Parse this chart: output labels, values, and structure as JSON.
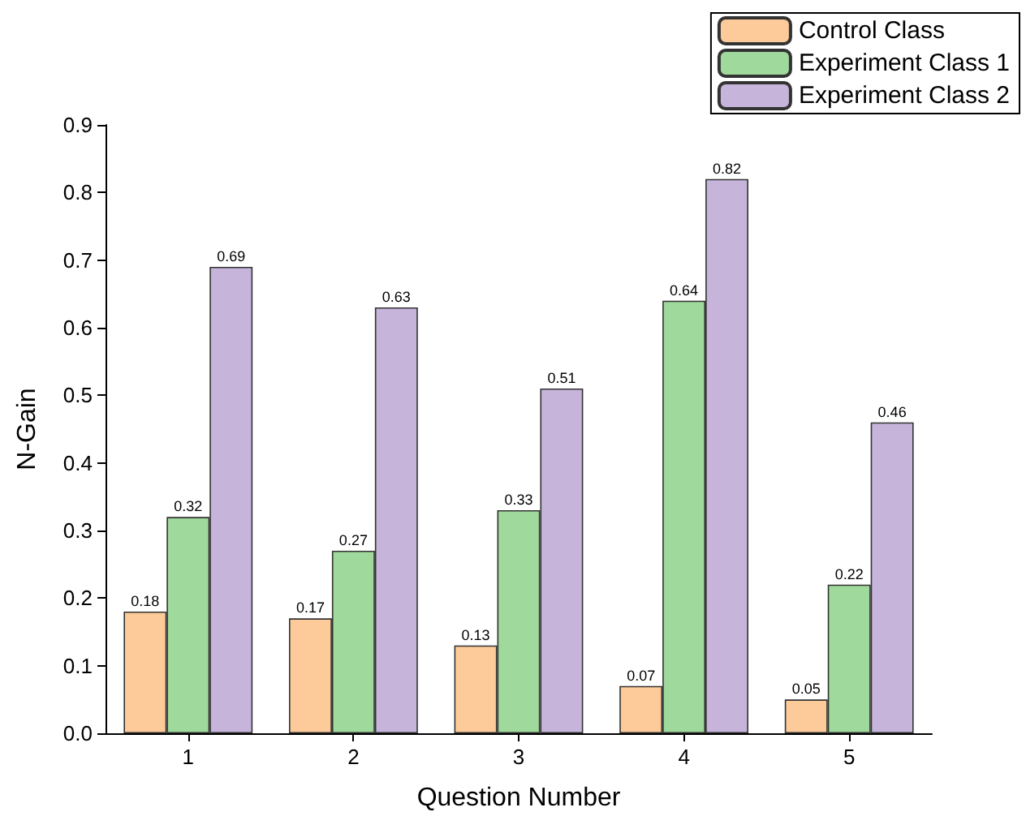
{
  "chart_data": {
    "type": "bar",
    "xlabel": "Question Number",
    "ylabel": "N-Gain",
    "categories": [
      "1",
      "2",
      "3",
      "4",
      "5"
    ],
    "series": [
      {
        "name": "Control Class",
        "color": "#fdca99",
        "values": [
          0.18,
          0.17,
          0.13,
          0.07,
          0.05
        ]
      },
      {
        "name": "Experiment Class 1",
        "color": "#9fd99b",
        "values": [
          0.32,
          0.27,
          0.33,
          0.64,
          0.22
        ]
      },
      {
        "name": "Experiment Class 2",
        "color": "#c6b4da",
        "values": [
          0.69,
          0.63,
          0.51,
          0.82,
          0.46
        ]
      }
    ],
    "ylim": [
      0,
      0.9
    ],
    "yticks": [
      {
        "value": 0,
        "label": "0.0"
      },
      0.1,
      0.2,
      0.3,
      0.4,
      0.5,
      0.6,
      0.7,
      0.8,
      0.9
    ],
    "data_labels": true,
    "grid": false,
    "legend": "top right"
  }
}
